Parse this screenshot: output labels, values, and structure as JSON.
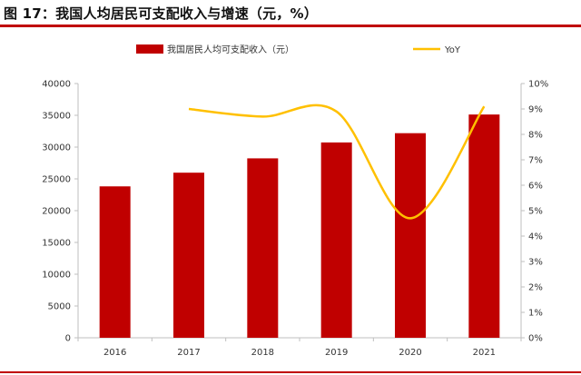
{
  "figure_title": "图 17：我国人均居民可支配收入与增速（元，%）",
  "colors": {
    "bar": "#c00000",
    "line": "#ffc000",
    "rule": "#c00000",
    "axis": "#bfbfbf"
  },
  "chart_data": {
    "type": "bar",
    "categories": [
      "2016",
      "2017",
      "2018",
      "2019",
      "2020",
      "2021"
    ],
    "series": [
      {
        "name": "我国居民人均可支配收入（元）",
        "type": "bar",
        "axis": "left",
        "values": [
          23821,
          25974,
          28228,
          30733,
          32189,
          35128
        ]
      },
      {
        "name": "YoY",
        "type": "line",
        "axis": "right",
        "values": [
          null,
          9.0,
          8.7,
          8.9,
          4.7,
          9.1
        ]
      }
    ],
    "left_axis": {
      "min": 0,
      "max": 40000,
      "ticks": [
        "0",
        "5000",
        "10000",
        "15000",
        "20000",
        "25000",
        "30000",
        "35000",
        "40000"
      ]
    },
    "right_axis": {
      "min": 0,
      "max": 10,
      "ticks": [
        "0%",
        "1%",
        "2%",
        "3%",
        "4%",
        "5%",
        "6%",
        "7%",
        "8%",
        "9%",
        "10%"
      ]
    },
    "legend": "top",
    "grid": false
  }
}
